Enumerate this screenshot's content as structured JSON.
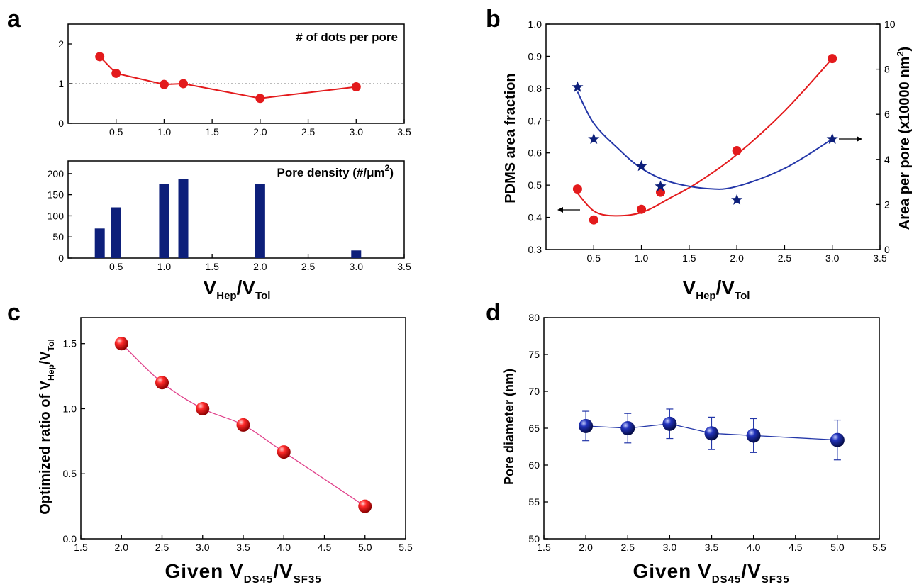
{
  "panels": {
    "a": "a",
    "b": "b",
    "c": "c",
    "d": "d"
  },
  "colors": {
    "red": "#e31a1c",
    "navy": "#0d1f7a",
    "blue_line": "#2336a8",
    "pink_line": "#e0408a"
  },
  "chart_data": [
    {
      "id": "a_top",
      "type": "line",
      "annotation": "# of dots per pore",
      "reference_line": 1,
      "x": [
        0.33,
        0.5,
        1.0,
        1.2,
        2.0,
        3.0
      ],
      "y": [
        1.68,
        1.26,
        0.98,
        1.0,
        0.63,
        0.92
      ],
      "xlim": [
        0,
        3.5
      ],
      "ylim": [
        0,
        2.5
      ],
      "xticks": [
        "0.5",
        "1.0",
        "1.5",
        "2.0",
        "2.5",
        "3.0",
        "3.5"
      ],
      "yticks": [
        "0",
        "1",
        "2"
      ]
    },
    {
      "id": "a_bottom",
      "type": "bar",
      "annotation": "Pore density (#/μm",
      "annotation_sup": "2",
      "annotation_end": ")",
      "x": [
        0.33,
        0.5,
        1.0,
        1.2,
        2.0,
        3.0
      ],
      "values": [
        70,
        120,
        175,
        187,
        175,
        18
      ],
      "xlim": [
        0,
        3.5
      ],
      "ylim": [
        0,
        230
      ],
      "xticks": [
        "0.5",
        "1.0",
        "1.5",
        "2.0",
        "2.5",
        "3.0",
        "3.5"
      ],
      "yticks": [
        "0",
        "50",
        "100",
        "150",
        "200"
      ],
      "xlabel": {
        "main": "V",
        "sub1": "Hep",
        "slash": "/V",
        "sub2": "Tol"
      }
    },
    {
      "id": "b",
      "type": "scatter",
      "ylabel_left": "PDMS area fraction",
      "ylabel_right": {
        "main": "Area per pore (x10000 nm",
        "sup": "2",
        "end": ")"
      },
      "xlabel": {
        "main": "V",
        "sub1": "Hep",
        "slash": "/V",
        "sub2": "Tol"
      },
      "xlim": [
        0,
        3.5
      ],
      "ylim_left": [
        0.3,
        1.0
      ],
      "ylim_right": [
        0,
        10
      ],
      "xticks": [
        "0.5",
        "1.0",
        "1.5",
        "2.0",
        "2.5",
        "3.0",
        "3.5"
      ],
      "yticks_left": [
        "0.3",
        "0.4",
        "0.5",
        "0.6",
        "0.7",
        "0.8",
        "0.9",
        "1.0"
      ],
      "yticks_right": [
        "0",
        "2",
        "4",
        "6",
        "8",
        "10"
      ],
      "series": [
        {
          "axis": "left",
          "marker": "circle",
          "x": [
            0.33,
            0.5,
            1.0,
            1.2,
            2.0,
            3.0
          ],
          "y": [
            0.488,
            0.392,
            0.425,
            0.478,
            0.607,
            0.893
          ],
          "fit": [
            [
              0.33,
              0.475
            ],
            [
              0.5,
              0.42
            ],
            [
              0.7,
              0.405
            ],
            [
              1.0,
              0.415
            ],
            [
              1.3,
              0.46
            ],
            [
              1.6,
              0.51
            ],
            [
              2.0,
              0.595
            ],
            [
              2.5,
              0.73
            ],
            [
              3.0,
              0.893
            ]
          ]
        },
        {
          "axis": "right",
          "marker": "star",
          "x": [
            0.33,
            0.5,
            1.0,
            1.2,
            2.0,
            3.0
          ],
          "y": [
            7.2,
            4.9,
            3.7,
            2.8,
            2.2,
            4.9
          ],
          "fit": [
            [
              0.33,
              7.0
            ],
            [
              0.5,
              5.6
            ],
            [
              0.75,
              4.5
            ],
            [
              1.0,
              3.6
            ],
            [
              1.3,
              3.0
            ],
            [
              1.7,
              2.7
            ],
            [
              2.0,
              2.8
            ],
            [
              2.5,
              3.6
            ],
            [
              3.0,
              4.9
            ]
          ]
        }
      ]
    },
    {
      "id": "c",
      "type": "line",
      "ylabel": {
        "main": "Optimized ratio of  V",
        "sub1": "Hep",
        "slash": "/V",
        "sub2": "Tol"
      },
      "xlabel": {
        "main": "Given V",
        "sub1": "DS45",
        "slash": "/V",
        "sub2": "SF35"
      },
      "x": [
        2.0,
        2.5,
        3.0,
        3.5,
        4.0,
        5.0
      ],
      "y": [
        1.5,
        1.2,
        1.0,
        0.875,
        0.667,
        0.25
      ],
      "xlim": [
        1.5,
        5.5
      ],
      "ylim": [
        0,
        1.7
      ],
      "xticks": [
        "1.5",
        "2.0",
        "2.5",
        "3.0",
        "3.5",
        "4.0",
        "4.5",
        "5.0",
        "5.5"
      ],
      "yticks": [
        "0.0",
        "0.5",
        "1.0",
        "1.5"
      ]
    },
    {
      "id": "d",
      "type": "scatter",
      "ylabel": "Pore diameter (nm)",
      "xlabel": {
        "main": "Given V",
        "sub1": "DS45",
        "slash": "/V",
        "sub2": "SF35"
      },
      "x": [
        2.0,
        2.5,
        3.0,
        3.5,
        4.0,
        5.0
      ],
      "y": [
        65.3,
        65.0,
        65.6,
        64.3,
        64.0,
        63.4
      ],
      "err": [
        2.0,
        2.0,
        2.0,
        2.2,
        2.3,
        2.7
      ],
      "xlim": [
        1.5,
        5.5
      ],
      "ylim": [
        50,
        80
      ],
      "xticks": [
        "1.5",
        "2.0",
        "2.5",
        "3.0",
        "3.5",
        "4.0",
        "4.5",
        "5.0",
        "5.5"
      ],
      "yticks": [
        "50",
        "55",
        "60",
        "65",
        "70",
        "75",
        "80"
      ]
    }
  ]
}
